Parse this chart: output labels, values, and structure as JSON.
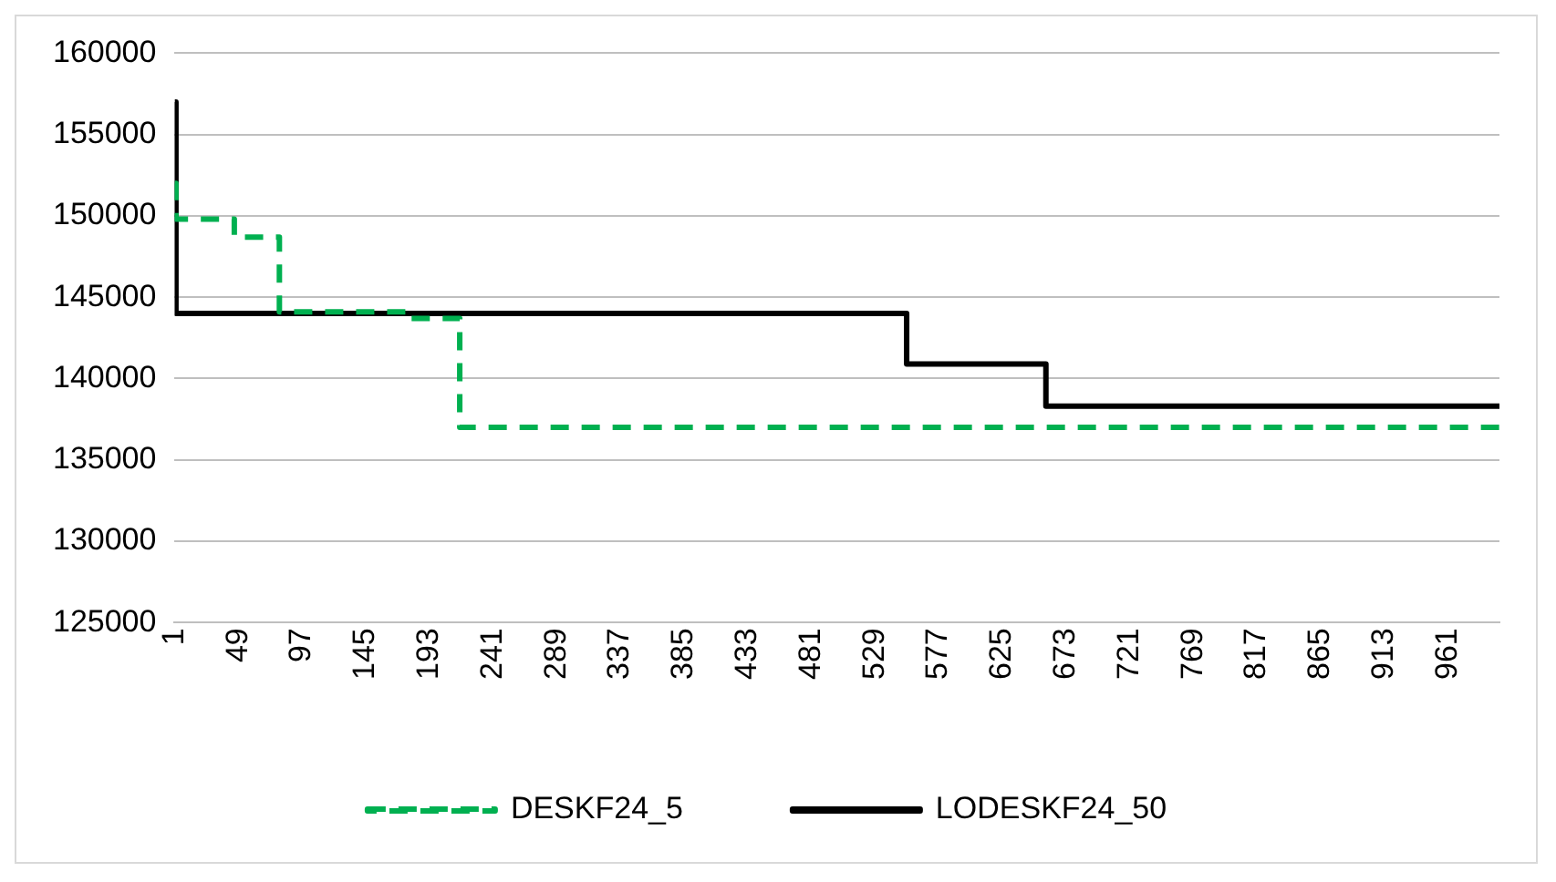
{
  "chart_data": {
    "type": "step",
    "xlim": [
      1,
      1000
    ],
    "xticks": [
      1,
      49,
      97,
      145,
      193,
      241,
      289,
      337,
      385,
      433,
      481,
      529,
      577,
      625,
      673,
      721,
      769,
      817,
      865,
      913,
      961
    ],
    "ylim": [
      125000,
      160000
    ],
    "yticks": [
      125000,
      130000,
      135000,
      140000,
      145000,
      150000,
      155000,
      160000
    ],
    "grid": "y",
    "legend": "bottom",
    "marker": "none",
    "series": [
      {
        "name": "DESKF24_5",
        "color": "#00b050",
        "line_style": "dashed",
        "x": [
          1,
          2,
          46,
          80,
          175,
          216,
          1000
        ],
        "values": [
          152000,
          149800,
          148700,
          144100,
          143700,
          137000,
          137000
        ]
      },
      {
        "name": "LODESKF24_50",
        "color": "#000000",
        "line_style": "solid",
        "x": [
          1,
          2,
          553,
          658,
          1000
        ],
        "values": [
          157000,
          144000,
          140900,
          138300,
          138300
        ]
      }
    ]
  }
}
